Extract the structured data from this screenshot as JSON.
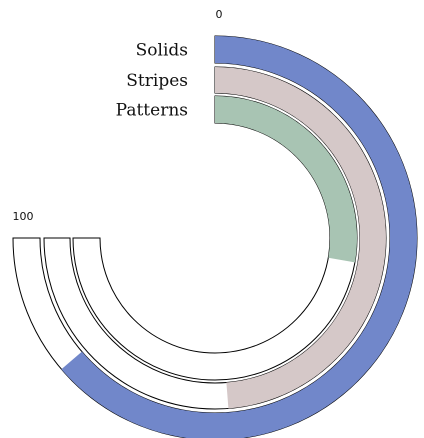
{
  "chart_data": {
    "type": "radial-bar",
    "title": "",
    "scale": {
      "min": 0,
      "max": 100,
      "start_angle_deg": 0,
      "sweep_deg": 270
    },
    "tick_labels": [
      "0",
      "100"
    ],
    "categories": [
      "Solids",
      "Stripes",
      "Patterns"
    ],
    "values": [
      85,
      65,
      37
    ],
    "colors": {
      "Solids": "#7187ca",
      "Stripes": "#d5c8c8",
      "Patterns": "#a8c4b3",
      "track": "#ffffff",
      "outline": "#000000"
    },
    "grid": false,
    "legend": "none"
  }
}
